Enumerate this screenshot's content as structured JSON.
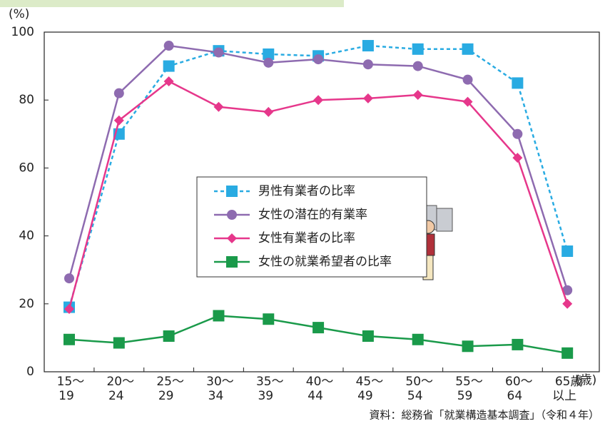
{
  "chart_data": {
    "type": "line",
    "y_label": "(%)",
    "x_label": "(歳)",
    "source": "資料：総務省「就業構造基本調査」（令和４年）",
    "categories": [
      [
        "15～",
        "19"
      ],
      [
        "20～",
        "24"
      ],
      [
        "25～",
        "29"
      ],
      [
        "30～",
        "34"
      ],
      [
        "35～",
        "39"
      ],
      [
        "40～",
        "44"
      ],
      [
        "45～",
        "49"
      ],
      [
        "50～",
        "54"
      ],
      [
        "55～",
        "59"
      ],
      [
        "60～",
        "64"
      ],
      [
        "65歳",
        "以上"
      ]
    ],
    "ylim": [
      0,
      100
    ],
    "yticks": [
      0,
      20,
      40,
      60,
      80,
      100
    ],
    "series": [
      {
        "name": "男性有業者の比率",
        "color": "#29abe2",
        "marker": "square",
        "dashed": true,
        "values": [
          19,
          70,
          90,
          94.5,
          93.5,
          93,
          96,
          95,
          95,
          85,
          35.5
        ]
      },
      {
        "name": "女性の潜在的有業率",
        "color": "#8e6bb0",
        "marker": "circle",
        "dashed": false,
        "values": [
          27.5,
          82,
          96,
          94,
          91,
          92,
          90.5,
          90,
          86,
          70,
          24
        ]
      },
      {
        "name": "女性有業者の比率",
        "color": "#e6378b",
        "marker": "diamond",
        "dashed": false,
        "values": [
          18.5,
          74,
          85.5,
          78,
          76.5,
          80,
          80.5,
          81.5,
          79.5,
          63,
          20
        ]
      },
      {
        "name": "女性の就業希望者の比率",
        "color": "#1a9a4a",
        "marker": "square",
        "dashed": false,
        "values": [
          9.5,
          8.5,
          10.5,
          16.5,
          15.5,
          13,
          10.5,
          9.5,
          7.5,
          8,
          5.5
        ]
      }
    ]
  }
}
